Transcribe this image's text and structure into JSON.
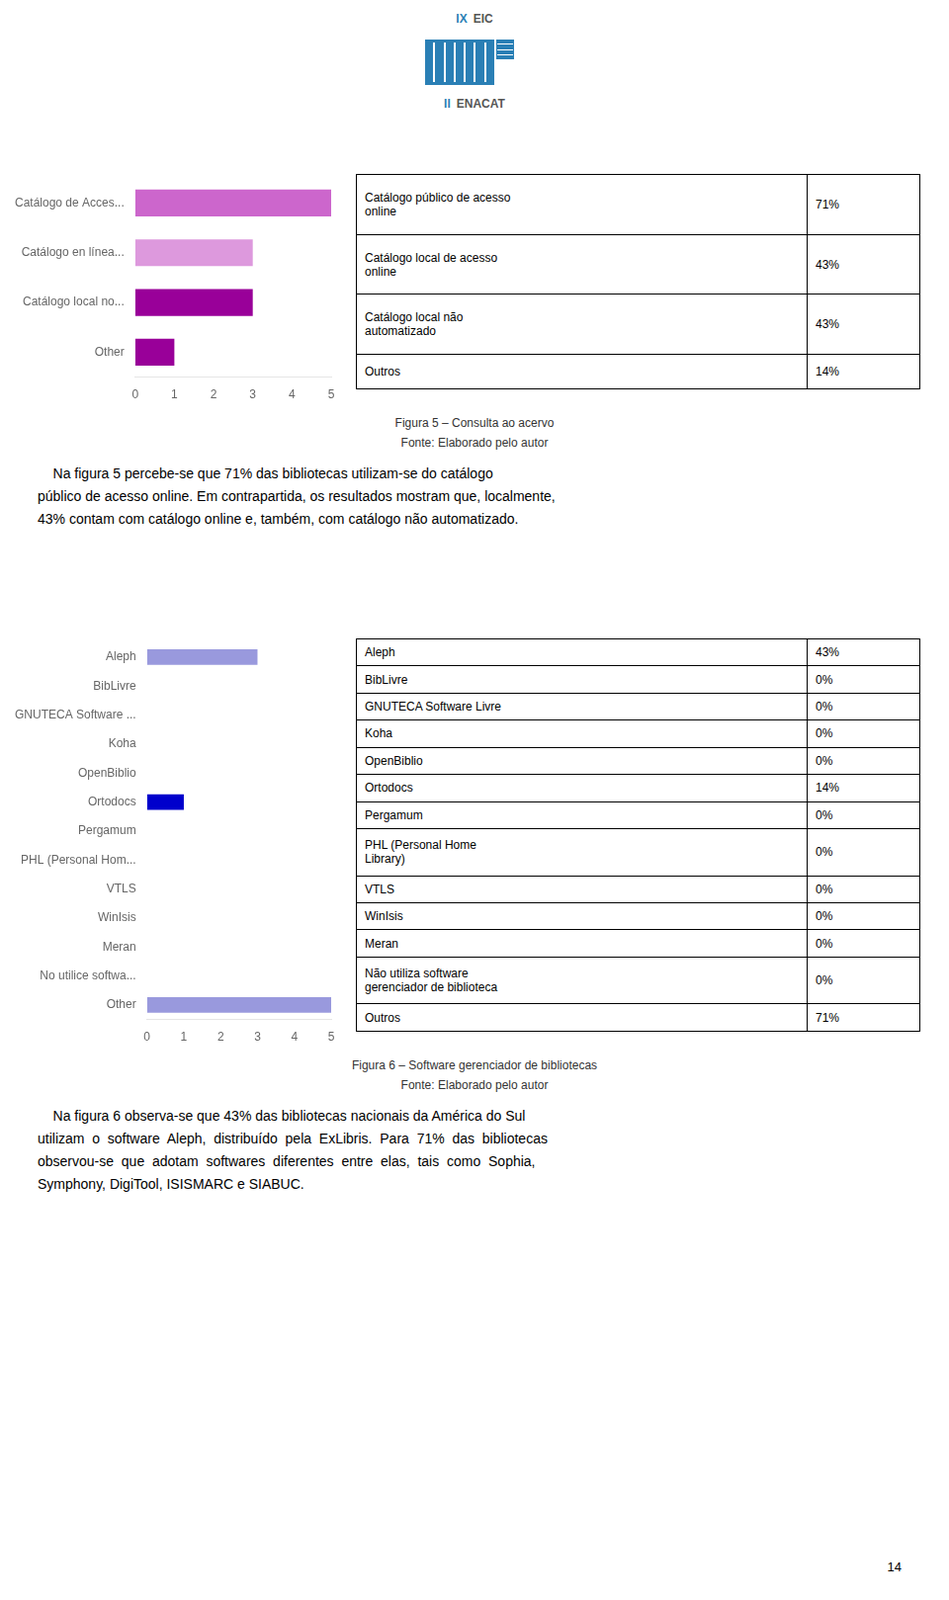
{
  "logo": {
    "top": [
      "IX",
      "EIC"
    ],
    "bottom": [
      "II",
      "ENACAT"
    ],
    "color": "#2a7fb5"
  },
  "chart_data": [
    {
      "type": "bar",
      "orientation": "horizontal",
      "title": "Figura 5 – Consulta ao acervo",
      "subtitle": "Fonte: Elaborado pelo autor",
      "categories": [
        "Catálogo de Acces...",
        "Catálogo en línea...",
        "Catálogo local no...",
        "Other"
      ],
      "values": [
        5,
        3,
        3,
        1
      ],
      "colors": [
        "#cc66cc",
        "#dd99dd",
        "#990099",
        "#990099"
      ],
      "xlim": [
        0,
        5
      ],
      "xticks": [
        0,
        1,
        2,
        3,
        4,
        5
      ],
      "grid": false,
      "table": {
        "rows": [
          [
            "Catálogo público de acesso\nonline",
            "71%"
          ],
          [
            "Catálogo local de acesso\nonline",
            "43%"
          ],
          [
            "Catálogo local não\nautomatizado",
            "43%"
          ],
          [
            "Outros",
            "14%"
          ]
        ]
      },
      "annotations": [
        "    Na figura 5 percebe-se que 71% das bibliotecas utilizam-se do catálogo",
        "público de acesso online. Em contrapartida, os resultados mostram que, localmente,",
        "43% contam com catálogo online e, também, com catálogo não automatizado."
      ]
    },
    {
      "type": "bar",
      "orientation": "horizontal",
      "title": "Figura 6 – Software gerenciador de bibliotecas",
      "subtitle": "Fonte: Elaborado pelo autor",
      "categories": [
        "Aleph",
        "BibLivre",
        "GNUTECA Software ...",
        "Koha",
        "OpenBiblio",
        "Ortodocs",
        "Pergamum",
        "PHL (Personal Hom...",
        "VTLS",
        "WinIsis",
        "Meran",
        "No utilice softwa...",
        "Other"
      ],
      "values": [
        3,
        0,
        0,
        0,
        0,
        1,
        0,
        0,
        0,
        0,
        0,
        0,
        5
      ],
      "colors": [
        "#9999dd",
        "#9999dd",
        "#9999dd",
        "#9999dd",
        "#9999dd",
        "#0000cc",
        "#9999dd",
        "#9999dd",
        "#9999dd",
        "#9999dd",
        "#9999dd",
        "#9999dd",
        "#9999dd"
      ],
      "xlim": [
        0,
        5
      ],
      "xticks": [
        0,
        1,
        2,
        3,
        4,
        5
      ],
      "grid": false,
      "table": {
        "rows": [
          [
            "Aleph",
            "43%"
          ],
          [
            "BibLivre",
            "0%"
          ],
          [
            "GNUTECA Software Livre",
            "0%"
          ],
          [
            "Koha",
            "0%"
          ],
          [
            "OpenBiblio",
            "0%"
          ],
          [
            "Ortodocs",
            "14%"
          ],
          [
            "Pergamum",
            "0%"
          ],
          [
            "PHL (Personal Home\nLibrary)",
            "0%"
          ],
          [
            "VTLS",
            "0%"
          ],
          [
            "WinIsis",
            "0%"
          ],
          [
            "Meran",
            "0%"
          ],
          [
            "Não utiliza software\ngerenciador de biblioteca",
            "0%"
          ],
          [
            "Outros",
            "71%"
          ]
        ]
      },
      "annotations": [
        "    Na figura 6 observa-se que 43% das bibliotecas nacionais da América do Sul",
        "utilizam  o  software  Aleph,  distribuído  pela  ExLibris.  Para  71%  das  bibliotecas",
        "observou-se  que  adotam  softwares  diferentes  entre  elas,  tais  como  Sophia,",
        "Symphony, DigiTool, ISISMARC e SIABUC."
      ]
    }
  ],
  "page_number": "14"
}
